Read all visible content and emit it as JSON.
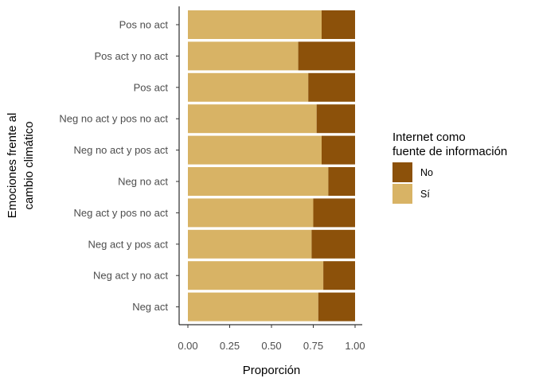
{
  "chart_data": {
    "type": "bar",
    "orientation": "horizontal",
    "stacked": true,
    "categories": [
      "Pos no act",
      "Pos act y no act",
      "Pos act",
      "Neg no act y pos no act",
      "Neg no act y pos act",
      "Neg no act",
      "Neg act y pos no act",
      "Neg act y pos act",
      "Neg act y no act",
      "Neg act"
    ],
    "series": [
      {
        "name": "Sí",
        "color": "#d8b365",
        "values": [
          0.8,
          0.66,
          0.72,
          0.77,
          0.8,
          0.84,
          0.75,
          0.74,
          0.81,
          0.78
        ]
      },
      {
        "name": "No",
        "color": "#8c510a",
        "values": [
          0.2,
          0.34,
          0.28,
          0.23,
          0.2,
          0.16,
          0.25,
          0.26,
          0.19,
          0.22
        ]
      }
    ],
    "xlabel": "Proporción",
    "ylabel_lines": [
      "Emociones frente al",
      "cambio climático"
    ],
    "xlim": [
      0,
      1
    ],
    "xticks": [
      "0.00",
      "0.25",
      "0.50",
      "0.75",
      "1.00"
    ],
    "legend": {
      "title_lines": [
        "Internet como",
        "fuente de información"
      ],
      "entries": [
        {
          "label": "No",
          "color": "#8c510a"
        },
        {
          "label": "Sí",
          "color": "#d8b365"
        }
      ],
      "placement": "right"
    },
    "grid": false
  }
}
